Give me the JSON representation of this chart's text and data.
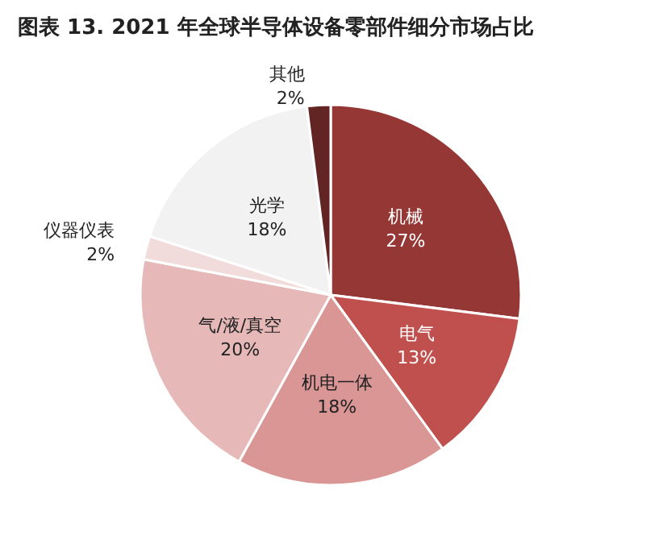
{
  "chart_data": {
    "type": "pie",
    "title": "图表 13. 2021 年全球半导体设备零部件细分市场占比",
    "categories": [
      "机械",
      "电气",
      "机电一体",
      "气/液/真空",
      "仪器仪表",
      "光学",
      "其他"
    ],
    "values": [
      27,
      13,
      18,
      20,
      2,
      18,
      2
    ],
    "value_labels": [
      "27%",
      "13%",
      "18%",
      "20%",
      "2%",
      "18%",
      "2%"
    ],
    "colors": [
      "#953735",
      "#c0504d",
      "#d99694",
      "#e6b9b8",
      "#f2dcdb",
      "#f2f2f2",
      "#632523"
    ],
    "legend": false
  }
}
